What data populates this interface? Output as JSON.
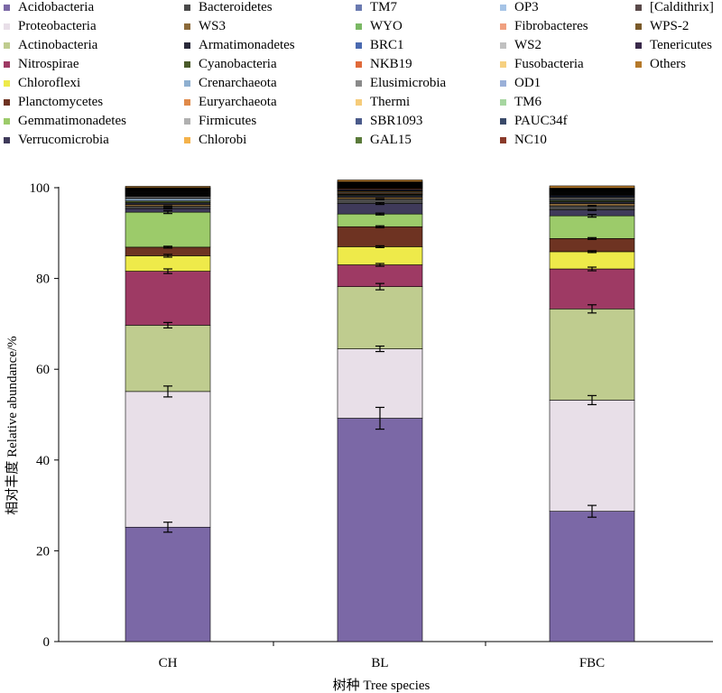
{
  "chart_data": {
    "type": "bar",
    "stacked": true,
    "categories": [
      "CH",
      "BL",
      "FBC"
    ],
    "xlabel": "树种 Tree species",
    "ylabel": "相对丰度 Relative abundance/%",
    "ylim": [
      0,
      100
    ],
    "yticks": [
      0,
      20,
      40,
      60,
      80,
      100
    ],
    "legend_position": "top",
    "series": [
      {
        "name": "Acidobacteria",
        "color": "#7b68a6",
        "values": [
          25.2,
          49.2,
          28.7
        ],
        "errors": [
          1.1,
          2.4,
          1.3
        ]
      },
      {
        "name": "Proteobacteria",
        "color": "#e8dfe8",
        "values": [
          29.9,
          15.3,
          24.5
        ],
        "errors": [
          1.2,
          0.6,
          1.0
        ]
      },
      {
        "name": "Actinobacteria",
        "color": "#bfcc8f",
        "values": [
          14.6,
          13.7,
          20.1
        ],
        "errors": [
          0.6,
          0.7,
          0.9
        ]
      },
      {
        "name": "Nitrospirae",
        "color": "#9e3a64",
        "values": [
          11.9,
          4.8,
          8.8
        ],
        "errors": [
          0.5,
          0.3,
          0.4
        ]
      },
      {
        "name": "Chloroflexi",
        "color": "#eeea4a",
        "values": [
          3.4,
          4.0,
          3.8
        ],
        "errors": [
          0.3,
          0.2,
          0.2
        ]
      },
      {
        "name": "Planctomycetes",
        "color": "#6e3322",
        "values": [
          1.9,
          4.4,
          2.9
        ],
        "errors": [
          0.2,
          0.2,
          0.2
        ]
      },
      {
        "name": "Gemmatimonadetes",
        "color": "#9ccb6a",
        "values": [
          7.7,
          2.8,
          5.0
        ],
        "errors": [
          0.3,
          0.2,
          0.3
        ]
      },
      {
        "name": "Verrucomicrobia",
        "color": "#3f3a5a",
        "values": [
          0.8,
          2.3,
          1.3
        ],
        "errors": [
          0.1,
          0.2,
          0.1
        ]
      },
      {
        "name": "Bacteroidetes",
        "color": "#4a4a4a",
        "values": [
          0.5,
          1.0,
          0.9
        ],
        "errors": [
          0.1,
          0.1,
          0.1
        ]
      },
      {
        "name": "WS3",
        "color": "#8b6a3a",
        "values": [
          0.4,
          0.4,
          0.5
        ],
        "errors": [
          0,
          0,
          0
        ]
      },
      {
        "name": "Armatimonadetes",
        "color": "#2a2a3a",
        "values": [
          0.4,
          0.4,
          0.4
        ],
        "errors": [
          0,
          0,
          0
        ]
      },
      {
        "name": "Cyanobacteria",
        "color": "#4a5a2a",
        "values": [
          0.4,
          0.2,
          0.3
        ],
        "errors": [
          0,
          0,
          0
        ]
      },
      {
        "name": "Crenarchaeota",
        "color": "#8fb0d0",
        "values": [
          0.5,
          0.1,
          0.2
        ],
        "errors": [
          0,
          0,
          0
        ]
      },
      {
        "name": "Euryarchaeota",
        "color": "#e08a4a",
        "values": [
          0.1,
          0.2,
          0.1
        ],
        "errors": [
          0,
          0,
          0
        ]
      },
      {
        "name": "Firmicutes",
        "color": "#b0b0b0",
        "values": [
          0.3,
          0.2,
          0.3
        ],
        "errors": [
          0,
          0,
          0
        ]
      },
      {
        "name": "Chlorobi",
        "color": "#f4b24a",
        "values": [
          0.1,
          0.2,
          0.1
        ],
        "errors": [
          0,
          0,
          0
        ]
      },
      {
        "name": "TM7",
        "color": "#6a7ab0",
        "values": [
          0.1,
          0.1,
          0.1
        ],
        "errors": [
          0,
          0,
          0
        ]
      },
      {
        "name": "WYO",
        "color": "#7ab864",
        "values": [
          0.1,
          0.1,
          0.1
        ],
        "errors": [
          0,
          0,
          0
        ]
      },
      {
        "name": "BRC1",
        "color": "#4a6ab0",
        "values": [
          0.1,
          0.2,
          0.2
        ],
        "errors": [
          0,
          0,
          0
        ]
      },
      {
        "name": "NKB19",
        "color": "#e06a3a",
        "values": [
          0.1,
          0.2,
          0.1
        ],
        "errors": [
          0,
          0,
          0
        ]
      },
      {
        "name": "Elusimicrobia",
        "color": "#8a8a8a",
        "values": [
          0.1,
          0.1,
          0.1
        ],
        "errors": [
          0,
          0,
          0
        ]
      },
      {
        "name": "Thermi",
        "color": "#f6cc7a",
        "values": [
          0.1,
          0.1,
          0.1
        ],
        "errors": [
          0,
          0,
          0
        ]
      },
      {
        "name": "SBR1093",
        "color": "#4a5a8a",
        "values": [
          0.1,
          0.1,
          0.1
        ],
        "errors": [
          0,
          0,
          0
        ]
      },
      {
        "name": "GAL15",
        "color": "#5a7a3a",
        "values": [
          0.1,
          0.1,
          0.1
        ],
        "errors": [
          0,
          0,
          0
        ]
      },
      {
        "name": "OP3",
        "color": "#a6c4e6",
        "values": [
          0.1,
          0.1,
          0.1
        ],
        "errors": [
          0,
          0,
          0
        ]
      },
      {
        "name": "Fibrobacteres",
        "color": "#f0a080",
        "values": [
          0.1,
          0.1,
          0.1
        ],
        "errors": [
          0,
          0,
          0
        ]
      },
      {
        "name": "WS2",
        "color": "#c0c0c0",
        "values": [
          0.1,
          0.1,
          0.1
        ],
        "errors": [
          0,
          0,
          0
        ]
      },
      {
        "name": "Fusobacteria",
        "color": "#f6d080",
        "values": [
          0.1,
          0.1,
          0.1
        ],
        "errors": [
          0,
          0,
          0
        ]
      },
      {
        "name": "OD1",
        "color": "#9ab0d8",
        "values": [
          0.1,
          0.1,
          0.1
        ],
        "errors": [
          0,
          0,
          0
        ]
      },
      {
        "name": "TM6",
        "color": "#a6d6a0",
        "values": [
          0.1,
          0.1,
          0.1
        ],
        "errors": [
          0,
          0,
          0
        ]
      },
      {
        "name": "PAUC34f",
        "color": "#3a4a6a",
        "values": [
          0.1,
          0.1,
          0.1
        ],
        "errors": [
          0,
          0,
          0
        ]
      },
      {
        "name": "NC10",
        "color": "#8a3a2a",
        "values": [
          0.1,
          0.1,
          0.1
        ],
        "errors": [
          0,
          0,
          0
        ]
      },
      {
        "name": "[Caldithrix]",
        "color": "#5a4a4a",
        "values": [
          0.1,
          0.1,
          0.1
        ],
        "errors": [
          0,
          0,
          0
        ]
      },
      {
        "name": "WPS-2",
        "color": "#7a5a2a",
        "values": [
          0.1,
          0.1,
          0.1
        ],
        "errors": [
          0,
          0,
          0
        ]
      },
      {
        "name": "Tenericutes",
        "color": "#3a2a4a",
        "values": [
          0.1,
          0.1,
          0.1
        ],
        "errors": [
          0,
          0,
          0
        ]
      },
      {
        "name": "Others",
        "color": "#b5792a",
        "values": [
          0.3,
          0.4,
          0.5
        ],
        "errors": [
          0,
          0,
          0
        ]
      }
    ]
  }
}
